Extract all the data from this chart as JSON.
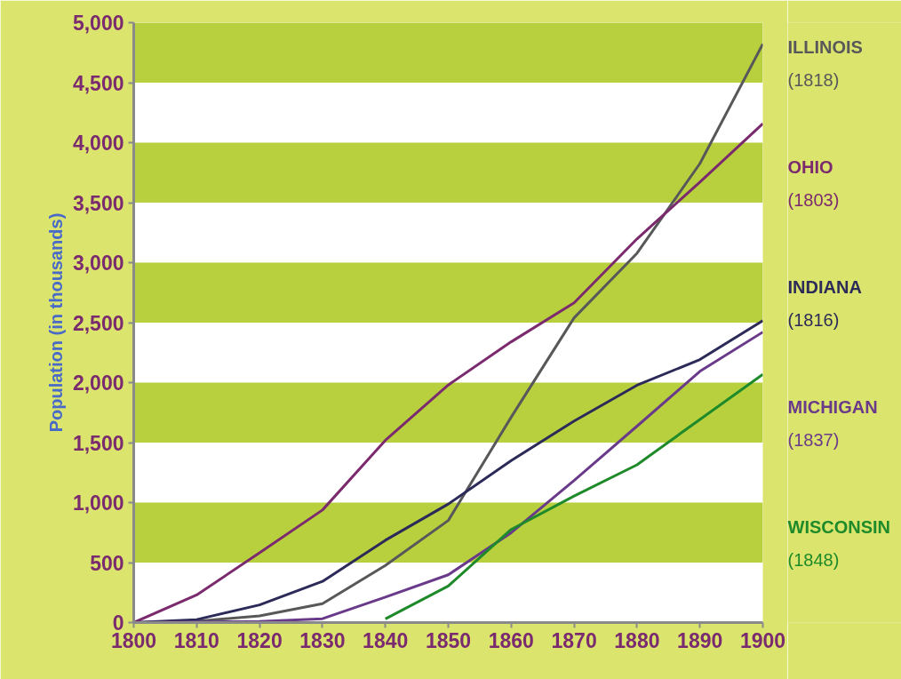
{
  "chart_data": {
    "type": "line",
    "ylabel": "Population (in thousands)",
    "x": [
      1800,
      1810,
      1820,
      1830,
      1840,
      1850,
      1860,
      1870,
      1880,
      1890,
      1900
    ],
    "series": [
      {
        "name": "ILLINOIS",
        "color": "#58585a",
        "values": [
          0,
          12,
          55,
          157,
          476,
          851,
          1712,
          2540,
          3078,
          3826,
          4822
        ]
      },
      {
        "name": "OHIO",
        "color": "#7b2a6e",
        "values": [
          0,
          230,
          581,
          938,
          1519,
          1980,
          2340,
          2665,
          3198,
          3672,
          4158
        ]
      },
      {
        "name": "INDIANA",
        "color": "#2b2a58",
        "values": [
          0,
          25,
          147,
          343,
          686,
          988,
          1350,
          1680,
          1978,
          2192,
          2516
        ]
      },
      {
        "name": "MICHIGAN",
        "color": "#6a3a8a",
        "values": [
          0,
          5,
          9,
          32,
          212,
          398,
          749,
          1184,
          1637,
          2094,
          2421
        ]
      },
      {
        "name": "WISCONSIN",
        "color": "#1e8a2a",
        "values": [
          null,
          null,
          null,
          null,
          31,
          305,
          776,
          1055,
          1315,
          1693,
          2069
        ]
      }
    ],
    "annotations": [
      "(1818)",
      "(1803)",
      "(1816)",
      "(1837)",
      "(1848)"
    ],
    "xlim": [
      1800,
      1900
    ],
    "xticks": [
      1800,
      1810,
      1820,
      1830,
      1840,
      1850,
      1860,
      1870,
      1880,
      1890,
      1900
    ],
    "ylim": [
      0,
      5000
    ],
    "yticks": [
      0,
      500,
      {
        "value": 1000,
        "label": "1,000"
      },
      {
        "value": 1500,
        "label": "1,500"
      },
      {
        "value": 2000,
        "label": "2,000"
      },
      {
        "value": 2500,
        "label": "2,500"
      },
      {
        "value": 3000,
        "label": "3,000"
      },
      {
        "value": 3500,
        "label": "3,500"
      },
      {
        "value": 4000,
        "label": "4,000"
      },
      {
        "value": 4500,
        "label": "4,500"
      },
      {
        "value": 5000,
        "label": "5,000"
      }
    ],
    "bands": [
      {
        "axis": "y",
        "from": 500,
        "to": 1000,
        "color": "#b9d03e"
      },
      {
        "axis": "y",
        "from": 1500,
        "to": 2000,
        "color": "#b9d03e"
      },
      {
        "axis": "y",
        "from": 2500,
        "to": 3000,
        "color": "#b9d03e"
      },
      {
        "axis": "y",
        "from": 3500,
        "to": 4000,
        "color": "#b9d03e"
      },
      {
        "axis": "y",
        "from": 4500,
        "to": 5000,
        "color": "#b9d03e"
      }
    ],
    "marker": "none",
    "line_style": "solid"
  }
}
